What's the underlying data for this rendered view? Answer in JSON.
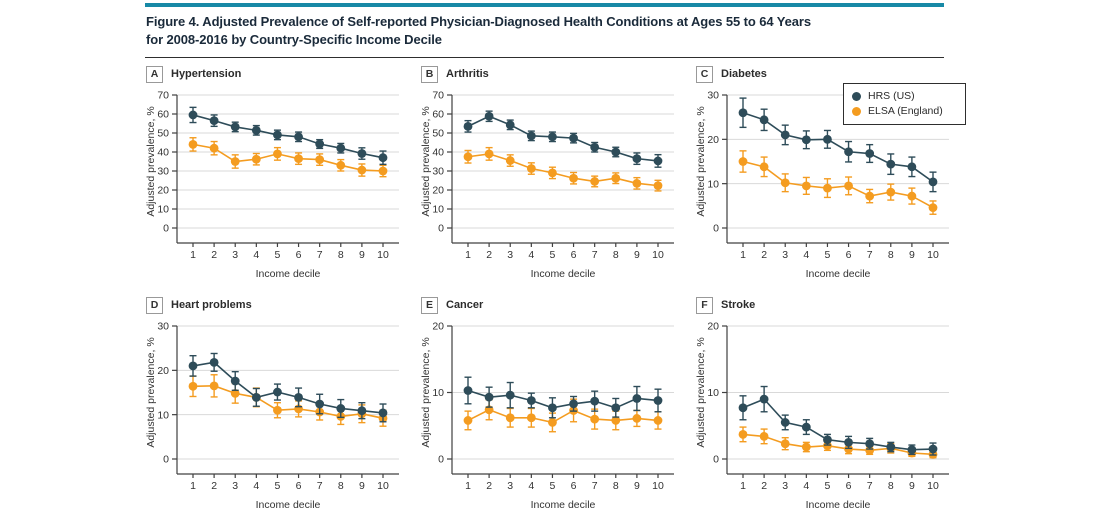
{
  "page": {
    "accent_bar_color": "#1789a6",
    "title_line1": "Figure 4. Adjusted Prevalence of Self-reported Physician-Diagnosed Health Conditions at Ages 55 to 64 Years",
    "title_line2": "for 2008-2016 by Country-Specific Income Decile"
  },
  "legend": {
    "location": "panel-C-top-right",
    "items": [
      {
        "label": "HRS (US)",
        "color": "#2e4c59"
      },
      {
        "label": "ELSA (England)",
        "color": "#f49c20"
      }
    ]
  },
  "chart_data": [
    {
      "type": "line",
      "panel": "A",
      "title": "Hypertension",
      "xlabel": "Income decile",
      "ylabel": "Adjusted prevalence, %",
      "x": [
        1,
        2,
        3,
        4,
        5,
        6,
        7,
        8,
        9,
        10
      ],
      "ylim": [
        0,
        70
      ],
      "yticks": [
        0,
        10,
        20,
        30,
        40,
        50,
        60,
        70
      ],
      "grid": true,
      "series": [
        {
          "name": "HRS (US)",
          "color": "#2e4c59",
          "values": [
            59.5,
            56.5,
            53.2,
            51.4,
            49,
            48,
            44.2,
            42,
            39.2,
            37
          ],
          "error": [
            4,
            3,
            2.5,
            2.5,
            2.5,
            2.5,
            2.3,
            2.5,
            3,
            3.5
          ]
        },
        {
          "name": "ELSA (England)",
          "color": "#f49c20",
          "values": [
            44,
            42,
            35,
            36.2,
            39,
            36.5,
            36,
            33,
            30.5,
            30
          ],
          "error": [
            3.5,
            3.5,
            3.5,
            3,
            3.3,
            3,
            3,
            3,
            3.2,
            3
          ]
        }
      ]
    },
    {
      "type": "line",
      "panel": "B",
      "title": "Arthritis",
      "xlabel": "Income decile",
      "ylabel": "Adjusted prevalence, %",
      "x": [
        1,
        2,
        3,
        4,
        5,
        6,
        7,
        8,
        9,
        10
      ],
      "ylim": [
        0,
        70
      ],
      "yticks": [
        0,
        10,
        20,
        30,
        40,
        50,
        60,
        70
      ],
      "grid": true,
      "series": [
        {
          "name": "HRS (US)",
          "color": "#2e4c59",
          "values": [
            53.5,
            58.8,
            54.3,
            48.5,
            48,
            47.3,
            42.5,
            40,
            36.5,
            35.3
          ],
          "error": [
            3,
            2.7,
            2.5,
            2.5,
            2.5,
            2.5,
            2.5,
            2.5,
            3,
            3.3
          ]
        },
        {
          "name": "ELSA (England)",
          "color": "#f49c20",
          "values": [
            37.5,
            39,
            35.5,
            31.3,
            29,
            26.2,
            24.5,
            26.2,
            23.5,
            22.3
          ],
          "error": [
            3.3,
            3.3,
            3,
            3,
            3,
            3,
            2.8,
            2.8,
            3,
            2.8
          ]
        }
      ]
    },
    {
      "type": "line",
      "panel": "C",
      "title": "Diabetes",
      "legend": true,
      "xlabel": "Income decile",
      "ylabel": "Adjusted prevalence, %",
      "x": [
        1,
        2,
        3,
        4,
        5,
        6,
        7,
        8,
        9,
        10
      ],
      "ylim": [
        0,
        30
      ],
      "yticks": [
        0,
        10,
        20,
        30
      ],
      "grid": true,
      "series": [
        {
          "name": "HRS (US)",
          "color": "#2e4c59",
          "values": [
            26,
            24.4,
            21,
            19.9,
            20,
            17.2,
            16.8,
            14.4,
            13.8,
            10.4
          ],
          "error": [
            3.3,
            2.4,
            2.2,
            2,
            2,
            2.3,
            2,
            2.3,
            2.2,
            2.2
          ]
        },
        {
          "name": "ELSA (England)",
          "color": "#f49c20",
          "values": [
            15,
            13.8,
            10.2,
            9.5,
            9,
            9.5,
            7.2,
            8.1,
            7.2,
            4.6
          ],
          "error": [
            2.4,
            2.2,
            2,
            1.9,
            2.1,
            2,
            1.5,
            1.8,
            1.8,
            1.5
          ]
        }
      ]
    },
    {
      "type": "line",
      "panel": "D",
      "title": "Heart problems",
      "xlabel": "Income decile",
      "ylabel": "Adjusted prevalence, %",
      "x": [
        1,
        2,
        3,
        4,
        5,
        6,
        7,
        8,
        9,
        10
      ],
      "ylim": [
        0,
        30
      ],
      "yticks": [
        0,
        10,
        20,
        30
      ],
      "grid": true,
      "series": [
        {
          "name": "HRS (US)",
          "color": "#2e4c59",
          "values": [
            21,
            21.8,
            17.6,
            13.9,
            15.1,
            13.9,
            12.4,
            11.4,
            10.9,
            10.4
          ],
          "error": [
            2.3,
            2,
            2.1,
            2,
            1.8,
            2.1,
            2.2,
            2,
            1.8,
            2
          ]
        },
        {
          "name": "ELSA (England)",
          "color": "#f49c20",
          "values": [
            16.4,
            16.5,
            14.8,
            13.9,
            11,
            11.3,
            10.6,
            9.6,
            10.2,
            9.2
          ],
          "error": [
            2.3,
            2.5,
            2.2,
            2.1,
            1.7,
            1.8,
            1.8,
            1.8,
            2,
            1.8
          ]
        }
      ]
    },
    {
      "type": "line",
      "panel": "E",
      "title": "Cancer",
      "xlabel": "Income decile",
      "ylabel": "Adjusted prevalence, %",
      "x": [
        1,
        2,
        3,
        4,
        5,
        6,
        7,
        8,
        9,
        10
      ],
      "ylim": [
        0,
        20
      ],
      "yticks": [
        0,
        10,
        20
      ],
      "grid": true,
      "series": [
        {
          "name": "HRS (US)",
          "color": "#2e4c59",
          "values": [
            10.3,
            9.3,
            9.6,
            8.8,
            7.7,
            8.3,
            8.7,
            7.7,
            9.1,
            8.8
          ],
          "error": [
            2,
            1.5,
            1.9,
            1.1,
            1.5,
            1.1,
            1.5,
            1.4,
            1.8,
            1.7
          ]
        },
        {
          "name": "ELSA (England)",
          "color": "#f49c20",
          "values": [
            5.8,
            7.4,
            6.2,
            6.2,
            5.5,
            7.3,
            6,
            5.8,
            6.1,
            5.8
          ],
          "error": [
            1.4,
            1.5,
            1.4,
            1.4,
            1.4,
            1.7,
            1.5,
            1.4,
            1.2,
            1.3
          ]
        }
      ]
    },
    {
      "type": "line",
      "panel": "F",
      "title": "Stroke",
      "xlabel": "Income decile",
      "ylabel": "Adjusted prevalence, %",
      "x": [
        1,
        2,
        3,
        4,
        5,
        6,
        7,
        8,
        9,
        10
      ],
      "ylim": [
        0,
        20
      ],
      "yticks": [
        0,
        10,
        20
      ],
      "grid": true,
      "series": [
        {
          "name": "HRS (US)",
          "color": "#2e4c59",
          "values": [
            7.7,
            9,
            5.5,
            4.8,
            2.9,
            2.5,
            2.3,
            1.8,
            1.4,
            1.5
          ],
          "error": [
            1.8,
            1.9,
            1.1,
            1.1,
            0.8,
            0.9,
            0.8,
            0.7,
            0.7,
            0.9
          ]
        },
        {
          "name": "ELSA (England)",
          "color": "#f49c20",
          "values": [
            3.7,
            3.4,
            2.3,
            1.8,
            2,
            1.5,
            1.3,
            1.6,
            0.9,
            0.7
          ],
          "error": [
            1.1,
            1.1,
            0.9,
            0.7,
            0.7,
            0.7,
            0.6,
            0.7,
            0.5,
            0.5
          ]
        }
      ]
    }
  ]
}
